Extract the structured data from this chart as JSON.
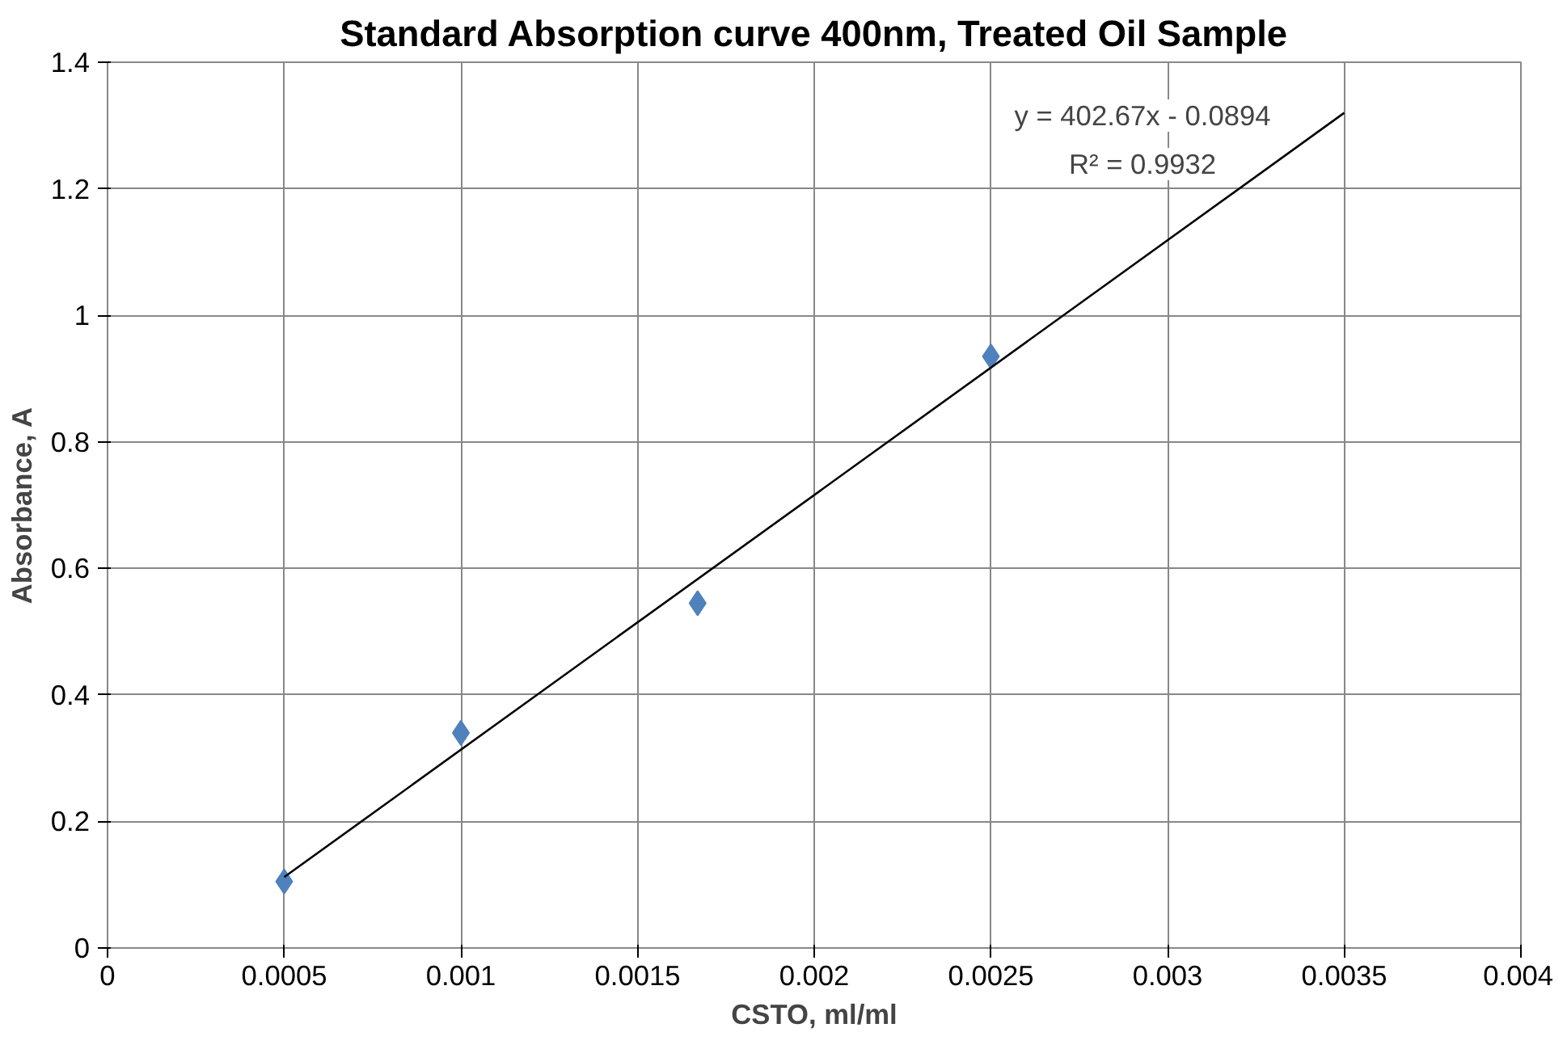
{
  "chart_data": {
    "type": "scatter",
    "title": "Standard Absorption curve 400nm, Treated Oil Sample",
    "xlabel": "CSTO, ml/ml",
    "ylabel": "Absorbance, A",
    "x": [
      0.0005,
      0.001,
      0.00167,
      0.0025
    ],
    "series": [
      {
        "color": "#4f81bd",
        "values": [
          0.105,
          0.34,
          0.545,
          0.935
        ],
        "marker": "diamond"
      },
      {
        "type": "line",
        "color": "#000000",
        "x": [
          0.0005,
          0.0035
        ],
        "values": [
          0.112,
          1.32
        ],
        "marker": "none"
      }
    ],
    "annotations": [
      "y = 402.67x - 0.0894",
      "R² = 0.9932"
    ],
    "xlim": [
      0,
      0.004
    ],
    "xticks": [
      0,
      0.0005,
      0.001,
      0.0015,
      0.002,
      0.0025,
      0.003,
      0.0035,
      0.004
    ],
    "ylim": [
      0,
      1.4
    ],
    "yticks": [
      0,
      0.2,
      0.4,
      0.6,
      0.8,
      1,
      1.2,
      1.4
    ],
    "grid": true
  }
}
